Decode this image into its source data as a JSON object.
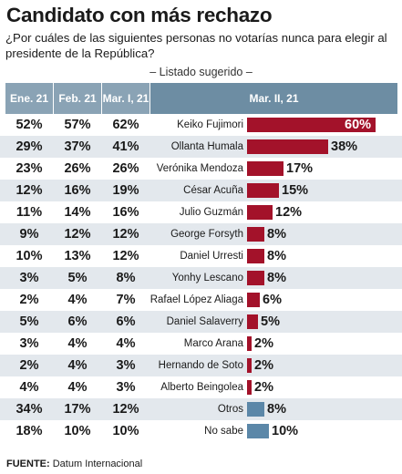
{
  "title": "Candidato con más rechazo",
  "question": "¿Por cuáles de las siguientes personas no votarías nunca para elegir al presidente de la República?",
  "subtitle": "– Listado sugerido –",
  "source_label": "FUENTE:",
  "source_text": "Datum Internacional",
  "colors": {
    "bar_candidate": "#a3122a",
    "bar_other": "#5b87a8",
    "header": "#8aa3b5",
    "header_main": "#6d8da3",
    "row_shade": "#e3e8ed"
  },
  "chart_data": {
    "type": "table",
    "columns": [
      "Ene. 21",
      "Feb. 21",
      "Mar. I, 21",
      "Mar. II, 21"
    ],
    "x_range": [
      0,
      60
    ],
    "rows": [
      {
        "name": "Keiko Fujimori",
        "ene": "52%",
        "feb": "57%",
        "mar1": "62%",
        "mar2": 60,
        "mar2_label": "60%",
        "kind": "candidate"
      },
      {
        "name": "Ollanta Humala",
        "ene": "29%",
        "feb": "37%",
        "mar1": "41%",
        "mar2": 38,
        "mar2_label": "38%",
        "kind": "candidate"
      },
      {
        "name": "Verónika Mendoza",
        "ene": "23%",
        "feb": "26%",
        "mar1": "26%",
        "mar2": 17,
        "mar2_label": "17%",
        "kind": "candidate"
      },
      {
        "name": "César Acuña",
        "ene": "12%",
        "feb": "16%",
        "mar1": "19%",
        "mar2": 15,
        "mar2_label": "15%",
        "kind": "candidate"
      },
      {
        "name": "Julio Guzmán",
        "ene": "11%",
        "feb": "14%",
        "mar1": "16%",
        "mar2": 12,
        "mar2_label": "12%",
        "kind": "candidate"
      },
      {
        "name": "George Forsyth",
        "ene": "9%",
        "feb": "12%",
        "mar1": "12%",
        "mar2": 8,
        "mar2_label": "8%",
        "kind": "candidate"
      },
      {
        "name": "Daniel Urresti",
        "ene": "10%",
        "feb": "13%",
        "mar1": "12%",
        "mar2": 8,
        "mar2_label": "8%",
        "kind": "candidate"
      },
      {
        "name": "Yonhy Lescano",
        "ene": "3%",
        "feb": "5%",
        "mar1": "8%",
        "mar2": 8,
        "mar2_label": "8%",
        "kind": "candidate"
      },
      {
        "name": "Rafael López Aliaga",
        "ene": "2%",
        "feb": "4%",
        "mar1": "7%",
        "mar2": 6,
        "mar2_label": "6%",
        "kind": "candidate"
      },
      {
        "name": "Daniel Salaverry",
        "ene": "5%",
        "feb": "6%",
        "mar1": "6%",
        "mar2": 5,
        "mar2_label": "5%",
        "kind": "candidate"
      },
      {
        "name": "Marco Arana",
        "ene": "3%",
        "feb": "4%",
        "mar1": "4%",
        "mar2": 2,
        "mar2_label": "2%",
        "kind": "candidate"
      },
      {
        "name": "Hernando de Soto",
        "ene": "2%",
        "feb": "4%",
        "mar1": "3%",
        "mar2": 2,
        "mar2_label": "2%",
        "kind": "candidate"
      },
      {
        "name": "Alberto Beingolea",
        "ene": "4%",
        "feb": "4%",
        "mar1": "3%",
        "mar2": 2,
        "mar2_label": "2%",
        "kind": "candidate"
      },
      {
        "name": "Otros",
        "ene": "34%",
        "feb": "17%",
        "mar1": "12%",
        "mar2": 8,
        "mar2_label": "8%",
        "kind": "other"
      },
      {
        "name": "No sabe",
        "ene": "18%",
        "feb": "10%",
        "mar1": "10%",
        "mar2": 10,
        "mar2_label": "10%",
        "kind": "other"
      }
    ]
  }
}
